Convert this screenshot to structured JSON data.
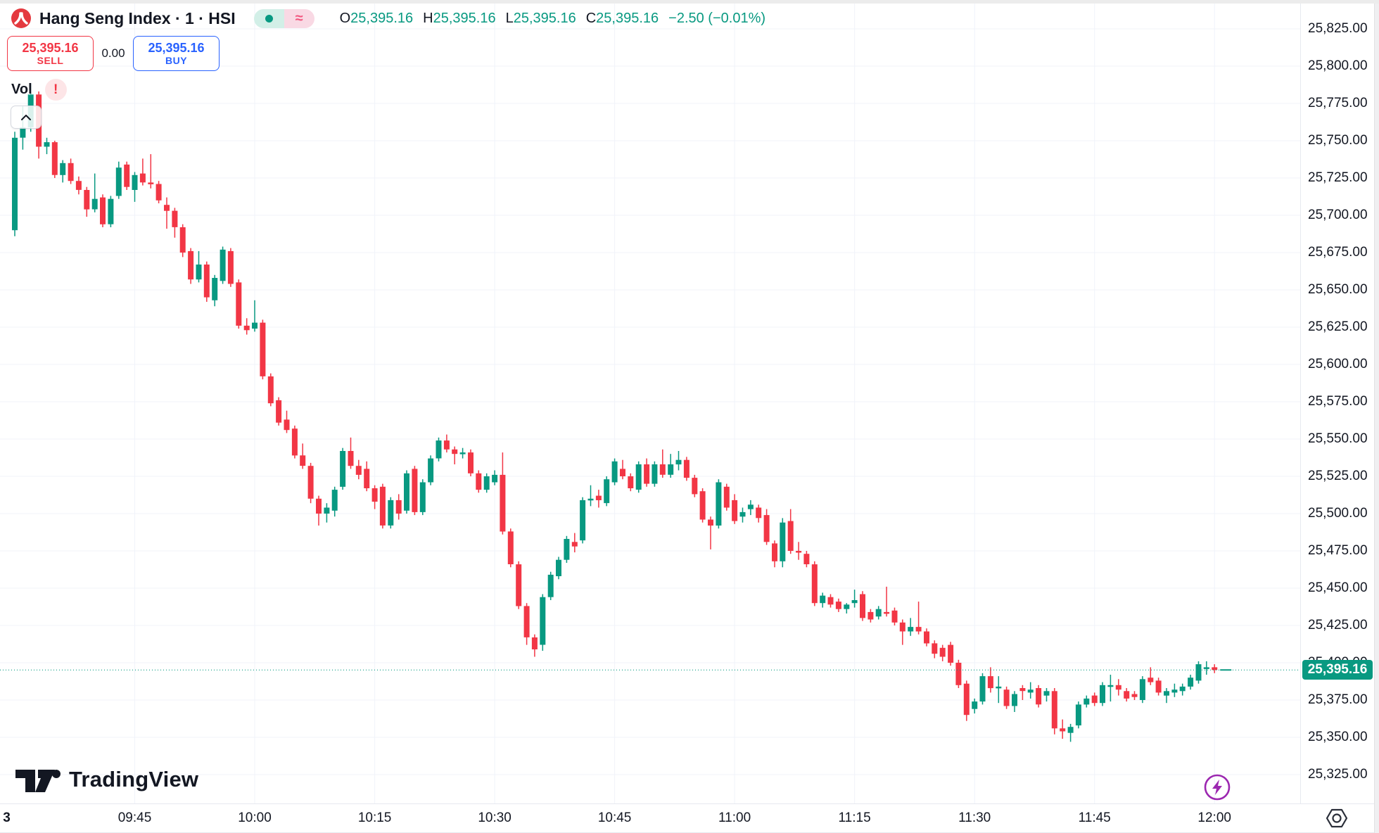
{
  "header": {
    "symbol_title": "Hang Seng Index · 1 · HSI",
    "status_pill": {
      "approx_symbol": "≈"
    },
    "ohlc": {
      "items": [
        {
          "label": "O",
          "value": "25,395.16"
        },
        {
          "label": "H",
          "value": "25,395.16"
        },
        {
          "label": "L",
          "value": "25,395.16"
        },
        {
          "label": "C",
          "value": "25,395.16"
        }
      ],
      "change": "−2.50 (−0.01%)"
    },
    "sell": {
      "price": "25,395.16",
      "label": "SELL"
    },
    "spread": "0.00",
    "buy": {
      "price": "25,395.16",
      "label": "BUY"
    },
    "vol_label": "Vol",
    "alert_badge": "!"
  },
  "colors": {
    "up": "#089981",
    "down": "#F23645",
    "sell": "#F23645",
    "buy": "#2962FF",
    "current_price_bg": "#089981",
    "lightning": "#9C27B0",
    "grid": "#F0F3FA"
  },
  "price_axis": {
    "labels": [
      "25,825.00",
      "25,800.00",
      "25,775.00",
      "25,750.00",
      "25,725.00",
      "25,700.00",
      "25,675.00",
      "25,650.00",
      "25,625.00",
      "25,600.00",
      "25,575.00",
      "25,550.00",
      "25,525.00",
      "25,500.00",
      "25,475.00",
      "25,450.00",
      "25,425.00",
      "25,400.00",
      "25,375.00",
      "25,350.00",
      "25,325.00"
    ],
    "current": "25,395.16"
  },
  "time_axis": {
    "labels": [
      {
        "text": "3",
        "index": -1
      },
      {
        "text": "09:45",
        "index": 15
      },
      {
        "text": "10:00",
        "index": 30
      },
      {
        "text": "10:15",
        "index": 45
      },
      {
        "text": "10:30",
        "index": 60
      },
      {
        "text": "10:45",
        "index": 75
      },
      {
        "text": "11:00",
        "index": 90
      },
      {
        "text": "11:15",
        "index": 105
      },
      {
        "text": "11:30",
        "index": 120
      },
      {
        "text": "11:45",
        "index": 135
      },
      {
        "text": "12:00",
        "index": 150
      }
    ]
  },
  "watermark": {
    "text": "TradingView"
  },
  "chart_data": {
    "type": "candlestick",
    "title": "Hang Seng Index 1-minute",
    "symbol": "HSI",
    "interval": "1",
    "up_color": "#089981",
    "down_color": "#F23645",
    "current_price": 25395.16,
    "x_range": [
      "09:30",
      "12:00"
    ],
    "ylim": [
      25310,
      25840
    ],
    "grid": true,
    "candles": [
      [
        "09:30",
        25690,
        25756,
        25686,
        25752
      ],
      [
        "09:31",
        25752,
        25773,
        25744,
        25759
      ],
      [
        "09:32",
        25759,
        25788,
        25756,
        25781
      ],
      [
        "09:33",
        25781,
        25783,
        25738,
        25746
      ],
      [
        "09:34",
        25746,
        25752,
        25741,
        25749
      ],
      [
        "09:35",
        25749,
        25750,
        25725,
        25727
      ],
      [
        "09:36",
        25727,
        25737,
        25722,
        25735
      ],
      [
        "09:37",
        25735,
        25738,
        25721,
        25723
      ],
      [
        "09:38",
        25723,
        25726,
        25714,
        25717
      ],
      [
        "09:39",
        25717,
        25719,
        25699,
        25704
      ],
      [
        "09:40",
        25704,
        25728,
        25702,
        25711
      ],
      [
        "09:41",
        25712,
        25714,
        25692,
        25694
      ],
      [
        "09:42",
        25694,
        25713,
        25692,
        25711
      ],
      [
        "09:43",
        25713,
        25736,
        25711,
        25732
      ],
      [
        "09:44",
        25734,
        25736,
        25717,
        25719
      ],
      [
        "09:45",
        25717,
        25729,
        25709,
        25727
      ],
      [
        "09:46",
        25728,
        25738,
        25720,
        25722
      ],
      [
        "09:47",
        25722,
        25741,
        25718,
        25721
      ],
      [
        "09:48",
        25721,
        25723,
        25708,
        25710
      ],
      [
        "09:49",
        25707,
        25712,
        25691,
        25703
      ],
      [
        "09:50",
        25703,
        25705,
        25685,
        25692
      ],
      [
        "09:51",
        25692,
        25694,
        25672,
        25675
      ],
      [
        "09:52",
        25676,
        25678,
        25654,
        25657
      ],
      [
        "09:53",
        25657,
        25676,
        25655,
        25667
      ],
      [
        "09:54",
        25667,
        25669,
        25642,
        25645
      ],
      [
        "09:55",
        25643,
        25660,
        25639,
        25658
      ],
      [
        "09:56",
        25656,
        25679,
        25654,
        25677
      ],
      [
        "09:57",
        25676,
        25678,
        25652,
        25654
      ],
      [
        "09:58",
        25655,
        25657,
        25624,
        25626
      ],
      [
        "09:59",
        25626,
        25631,
        25620,
        25623
      ],
      [
        "10:00",
        25624,
        25643,
        25622,
        25628
      ],
      [
        "10:01",
        25628,
        25630,
        25590,
        25592
      ],
      [
        "10:02",
        25592,
        25594,
        25572,
        25574
      ],
      [
        "10:03",
        25576,
        25578,
        25559,
        25561
      ],
      [
        "10:04",
        25563,
        25569,
        25554,
        25556
      ],
      [
        "10:05",
        25557,
        25559,
        25537,
        25539
      ],
      [
        "10:06",
        25539,
        25547,
        25530,
        25532
      ],
      [
        "10:07",
        25532,
        25534,
        25507,
        25510
      ],
      [
        "10:08",
        25510,
        25512,
        25492,
        25500
      ],
      [
        "10:09",
        25500,
        25507,
        25494,
        25504
      ],
      [
        "10:10",
        25502,
        25518,
        25498,
        25516
      ],
      [
        "10:11",
        25518,
        25544,
        25516,
        25542
      ],
      [
        "10:12",
        25542,
        25551,
        25530,
        25532
      ],
      [
        "10:13",
        25532,
        25536,
        25523,
        25526
      ],
      [
        "10:14",
        25530,
        25535,
        25515,
        25517
      ],
      [
        "10:15",
        25517,
        25519,
        25503,
        25508
      ],
      [
        "10:16",
        25518,
        25520,
        25490,
        25492
      ],
      [
        "10:17",
        25492,
        25511,
        25490,
        25509
      ],
      [
        "10:18",
        25509,
        25513,
        25496,
        25500
      ],
      [
        "10:19",
        25502,
        25529,
        25500,
        25527
      ],
      [
        "10:20",
        25530,
        25532,
        25499,
        25501
      ],
      [
        "10:21",
        25501,
        25523,
        25499,
        25521
      ],
      [
        "10:22",
        25521,
        25539,
        25519,
        25537
      ],
      [
        "10:23",
        25537,
        25551,
        25535,
        25549
      ],
      [
        "10:24",
        25549,
        25553,
        25541,
        25543
      ],
      [
        "10:25",
        25543,
        25545,
        25533,
        25540
      ],
      [
        "10:26",
        25540,
        25544,
        25537,
        25541
      ],
      [
        "10:27",
        25541,
        25543,
        25525,
        25527
      ],
      [
        "10:28",
        25527,
        25529,
        25514,
        25516
      ],
      [
        "10:29",
        25516,
        25527,
        25514,
        25525
      ],
      [
        "10:30",
        25521,
        25529,
        25519,
        25526
      ],
      [
        "10:31",
        25526,
        25541,
        25486,
        25488
      ],
      [
        "10:32",
        25488,
        25490,
        25464,
        25466
      ],
      [
        "10:33",
        25466,
        25468,
        25436,
        25438
      ],
      [
        "10:34",
        25438,
        25440,
        25412,
        25417
      ],
      [
        "10:35",
        25417,
        25419,
        25404,
        25409
      ],
      [
        "10:36",
        25412,
        25446,
        25408,
        25444
      ],
      [
        "10:37",
        25444,
        25461,
        25442,
        25459
      ],
      [
        "10:38",
        25458,
        25471,
        25456,
        25469
      ],
      [
        "10:39",
        25469,
        25485,
        25467,
        25483
      ],
      [
        "10:40",
        25481,
        25487,
        25474,
        25478
      ],
      [
        "10:41",
        25482,
        25511,
        25480,
        25509
      ],
      [
        "10:42",
        25509,
        25519,
        25505,
        25510
      ],
      [
        "10:43",
        25512,
        25516,
        25504,
        25509
      ],
      [
        "10:44",
        25507,
        25525,
        25505,
        25523
      ],
      [
        "10:45",
        25521,
        25537,
        25519,
        25535
      ],
      [
        "10:46",
        25530,
        25536,
        25523,
        25525
      ],
      [
        "10:47",
        25525,
        25527,
        25515,
        25517
      ],
      [
        "10:48",
        25516,
        25535,
        25514,
        25533
      ],
      [
        "10:49",
        25533,
        25537,
        25518,
        25520
      ],
      [
        "10:50",
        25520,
        25535,
        25518,
        25533
      ],
      [
        "10:51",
        25533,
        25543,
        25524,
        25526
      ],
      [
        "10:52",
        25526,
        25540,
        25524,
        25533
      ],
      [
        "10:53",
        25533,
        25542,
        25529,
        25536
      ],
      [
        "10:54",
        25536,
        25538,
        25522,
        25524
      ],
      [
        "10:55",
        25524,
        25526,
        25511,
        25513
      ],
      [
        "10:56",
        25515,
        25517,
        25494,
        25496
      ],
      [
        "10:57",
        25496,
        25498,
        25476,
        25492
      ],
      [
        "10:58",
        25492,
        25523,
        25490,
        25521
      ],
      [
        "10:59",
        25518,
        25520,
        25502,
        25504
      ],
      [
        "11:00",
        25509,
        25513,
        25493,
        25495
      ],
      [
        "11:01",
        25498,
        25504,
        25494,
        25501
      ],
      [
        "11:02",
        25503,
        25509,
        25499,
        25506
      ],
      [
        "11:03",
        25504,
        25506,
        25494,
        25497
      ],
      [
        "11:04",
        25499,
        25503,
        25479,
        25481
      ],
      [
        "11:05",
        25480,
        25482,
        25464,
        25468
      ],
      [
        "11:06",
        25468,
        25497,
        25464,
        25494
      ],
      [
        "11:07",
        25495,
        25503,
        25473,
        25475
      ],
      [
        "11:08",
        25475,
        25481,
        25469,
        25474
      ],
      [
        "11:09",
        25473,
        25475,
        25464,
        25466
      ],
      [
        "11:10",
        25466,
        25468,
        25438,
        25440
      ],
      [
        "11:11",
        25440,
        25447,
        25437,
        25445
      ],
      [
        "11:12",
        25444,
        25446,
        25437,
        25439
      ],
      [
        "11:13",
        25441,
        25443,
        25434,
        25436
      ],
      [
        "11:14",
        25436,
        25440,
        25433,
        25439
      ],
      [
        "11:15",
        25440,
        25449,
        25437,
        25442
      ],
      [
        "11:16",
        25446,
        25448,
        25428,
        25430
      ],
      [
        "11:17",
        25434,
        25436,
        25427,
        25429
      ],
      [
        "11:18",
        25431,
        25438,
        25429,
        25436
      ],
      [
        "11:19",
        25434,
        25451,
        25431,
        25433
      ],
      [
        "11:20",
        25435,
        25437,
        25425,
        25427
      ],
      [
        "11:21",
        25427,
        25429,
        25412,
        25421
      ],
      [
        "11:22",
        25421,
        25430,
        25418,
        25424
      ],
      [
        "11:23",
        25424,
        25441,
        25419,
        25421
      ],
      [
        "11:24",
        25421,
        25423,
        25411,
        25413
      ],
      [
        "11:25",
        25413,
        25415,
        25403,
        25406
      ],
      [
        "11:26",
        25410,
        25412,
        25401,
        25404
      ],
      [
        "11:27",
        25412,
        25414,
        25398,
        25400
      ],
      [
        "11:28",
        25400,
        25402,
        25383,
        25385
      ],
      [
        "11:29",
        25386,
        25388,
        25361,
        25365
      ],
      [
        "11:30",
        25369,
        25376,
        25366,
        25374
      ],
      [
        "11:31",
        25374,
        25393,
        25372,
        25391
      ],
      [
        "11:32",
        25391,
        25397,
        25380,
        25383
      ],
      [
        "11:33",
        25383,
        25391,
        25373,
        25384
      ],
      [
        "11:34",
        25382,
        25384,
        25369,
        25371
      ],
      [
        "11:35",
        25371,
        25381,
        25367,
        25379
      ],
      [
        "11:36",
        25383,
        25385,
        25375,
        25381
      ],
      [
        "11:37",
        25380,
        25387,
        25376,
        25382
      ],
      [
        "11:38",
        25383,
        25385,
        25370,
        25372
      ],
      [
        "11:39",
        25378,
        25383,
        25374,
        25381
      ],
      [
        "11:40",
        25381,
        25383,
        25352,
        25356
      ],
      [
        "11:41",
        25356,
        25362,
        25349,
        25354
      ],
      [
        "11:42",
        25353,
        25359,
        25347,
        25357
      ],
      [
        "11:43",
        25358,
        25374,
        25356,
        25372
      ],
      [
        "11:44",
        25372,
        25378,
        25370,
        25376
      ],
      [
        "11:45",
        25378,
        25380,
        25371,
        25373
      ],
      [
        "11:46",
        25373,
        25387,
        25371,
        25385
      ],
      [
        "11:47",
        25384,
        25392,
        25374,
        25385
      ],
      [
        "11:48",
        25385,
        25389,
        25378,
        25382
      ],
      [
        "11:49",
        25381,
        25383,
        25374,
        25376
      ],
      [
        "11:50",
        25379,
        25381,
        25375,
        25377
      ],
      [
        "11:51",
        25375,
        25391,
        25373,
        25389
      ],
      [
        "11:52",
        25390,
        25397,
        25385,
        25387
      ],
      [
        "11:53",
        25388,
        25390,
        25378,
        25380
      ],
      [
        "11:54",
        25378,
        25383,
        25373,
        25381
      ],
      [
        "11:55",
        25380,
        25386,
        25377,
        25382
      ],
      [
        "11:56",
        25381,
        25386,
        25378,
        25384
      ],
      [
        "11:57",
        25384,
        25392,
        25382,
        25390
      ],
      [
        "11:58",
        25388,
        25401,
        25386,
        25399
      ],
      [
        "11:59",
        25396,
        25401,
        25392,
        25397
      ],
      [
        "12:00",
        25397,
        25399,
        25393,
        25395.16
      ]
    ]
  }
}
